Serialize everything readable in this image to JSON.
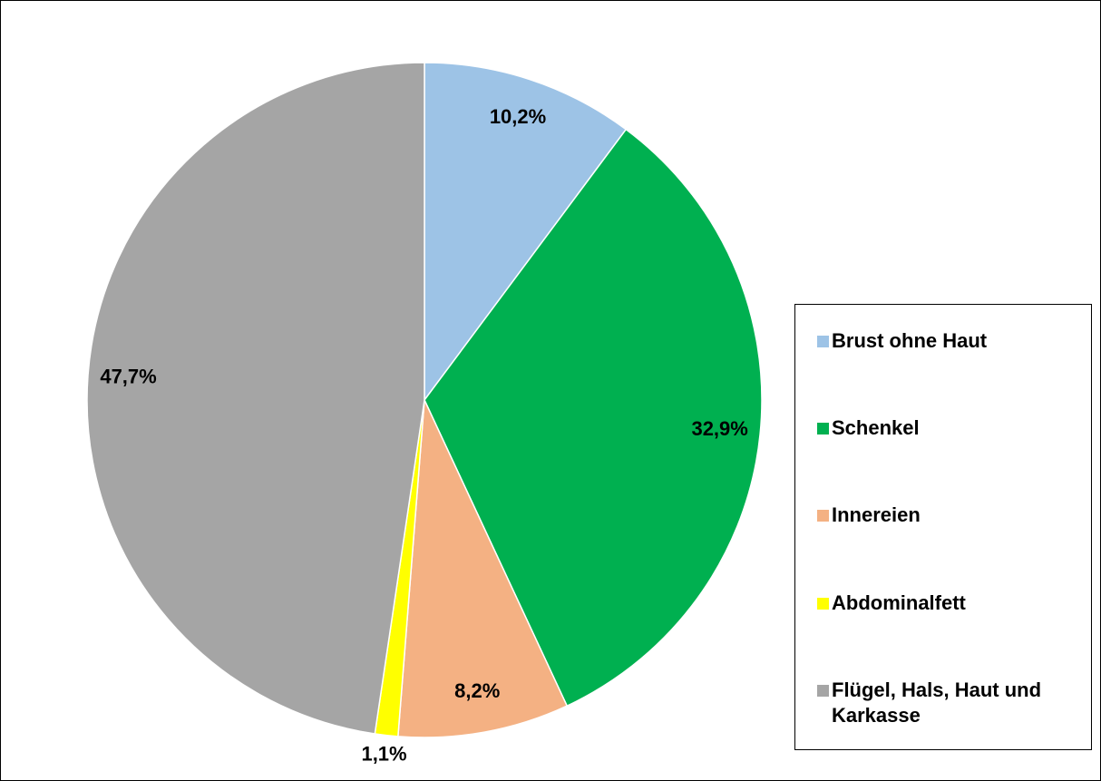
{
  "chart_data": {
    "type": "pie",
    "categories": [
      "Brust ohne Haut",
      "Schenkel",
      "Innereien",
      "Abdominalfett",
      "Flügel, Hals, Haut und Karkasse"
    ],
    "values": [
      10.2,
      32.9,
      8.2,
      1.1,
      47.7
    ],
    "value_labels": [
      "10,2%",
      "32,9%",
      "8,2%",
      "1,1%",
      "47,7%"
    ],
    "colors": [
      "#9dc3e6",
      "#00b050",
      "#f4b183",
      "#ffff00",
      "#a5a5a5"
    ],
    "legend": "right"
  }
}
